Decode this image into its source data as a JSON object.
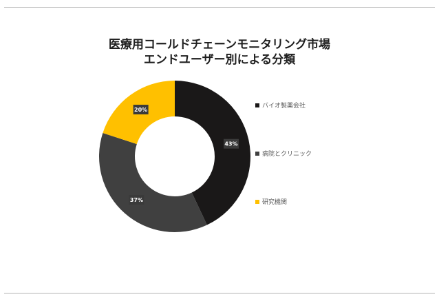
{
  "chart_data": {
    "type": "pie",
    "title_lines": [
      "医療用コールドチェーンモニタリング市場",
      "エンドユーザー別による分類"
    ],
    "categories": [
      "バイオ製薬会社",
      "病院とクリニック",
      "研究機関"
    ],
    "values": [
      43,
      37,
      20
    ],
    "data_labels": [
      "43%",
      "37%",
      "20%"
    ],
    "colors": [
      "#1a1818",
      "#404040",
      "#ffc000"
    ],
    "legend_position": "right",
    "donut": true
  }
}
